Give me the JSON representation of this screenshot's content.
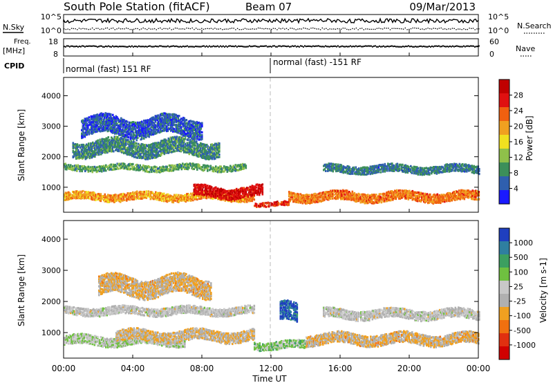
{
  "header": {
    "station": "South Pole Station (fitACF)",
    "beam": "Beam 07",
    "date": "09/Mar/2013"
  },
  "top_panels": {
    "nsky_label": "N.Sky",
    "nsky_ticks": [
      "10^5",
      "10^0"
    ],
    "nsearch_label": "N.Search",
    "freq_label_line1": "Freq.",
    "freq_label_line2": "[MHz]",
    "freq_ticks": [
      "18",
      "8"
    ],
    "nave_label": "Nave",
    "nave_ticks": [
      "60",
      "0"
    ],
    "cpid_label": "CPID",
    "cpid_segments": [
      "normal (fast) 151 RF",
      "normal (fast) -151 RF"
    ]
  },
  "x_axis": {
    "label": "Time UT",
    "ticks": [
      "00:00",
      "04:00",
      "08:00",
      "12:00",
      "16:00",
      "20:00",
      "00:00"
    ]
  },
  "power_panel": {
    "ylabel": "Slant Range [km]",
    "yticks": [
      "4000",
      "3000",
      "2000",
      "1000"
    ],
    "colorbar_label": "Power [dB]",
    "colorbar_ticks": [
      "28",
      "24",
      "20",
      "16",
      "12",
      "8",
      "4"
    ],
    "colors": [
      "#1a1aff",
      "#2f5fae",
      "#3c8f5a",
      "#8fc04a",
      "#f0e020",
      "#f0a020",
      "#f06010",
      "#e01010",
      "#c00000"
    ]
  },
  "velocity_panel": {
    "ylabel": "Slant Range [km]",
    "yticks": [
      "4000",
      "3000",
      "2000",
      "1000"
    ],
    "colorbar_label": "Velocity [m s-1]",
    "colorbar_ticks": [
      "1000",
      "500",
      "100",
      "25",
      "-25",
      "-100",
      "-500",
      "-1000"
    ],
    "colors": [
      "#1f3fbf",
      "#2f7fa0",
      "#3c9f60",
      "#6fc040",
      "#c8c8c8",
      "#b0b0b0",
      "#f0a020",
      "#f07010",
      "#e03010",
      "#d00000"
    ]
  },
  "chart_data": [
    {
      "type": "heatmap",
      "title": "South Pole Station (fitACF)",
      "xlabel": "Time UT",
      "ylabel": "Slant Range [km]",
      "xlim": [
        "00:00",
        "24:00"
      ],
      "ylim": [
        180,
        4600
      ],
      "colorbar": "Power [dB]",
      "clim": [
        0,
        32
      ],
      "echo_bands": [
        {
          "t_start": 0.0,
          "t_end": 11.0,
          "range_center": 700,
          "range_width": 250,
          "power": 20
        },
        {
          "t_start": 7.5,
          "t_end": 11.5,
          "range_center": 850,
          "range_width": 350,
          "power": 28
        },
        {
          "t_start": 0.0,
          "t_end": 10.5,
          "range_center": 1650,
          "range_width": 200,
          "power": 10
        },
        {
          "t_start": 0.5,
          "t_end": 9.0,
          "range_center": 2300,
          "range_width": 500,
          "power": 8
        },
        {
          "t_start": 1.0,
          "t_end": 8.0,
          "range_center": 3000,
          "range_width": 600,
          "power": 5
        },
        {
          "t_start": 11.0,
          "t_end": 13.0,
          "range_center": 450,
          "range_width": 150,
          "power": 26
        },
        {
          "t_start": 13.0,
          "t_end": 24.0,
          "range_center": 700,
          "range_width": 300,
          "power": 22
        },
        {
          "t_start": 15.0,
          "t_end": 24.0,
          "range_center": 1600,
          "range_width": 250,
          "power": 7
        }
      ]
    },
    {
      "type": "heatmap",
      "xlabel": "Time UT",
      "ylabel": "Slant Range [km]",
      "xlim": [
        "00:00",
        "24:00"
      ],
      "ylim": [
        180,
        4600
      ],
      "colorbar": "Velocity [m s-1]",
      "clim": [
        -1000,
        1000
      ],
      "echo_bands": [
        {
          "t_start": 0.0,
          "t_end": 7.0,
          "range_center": 750,
          "range_width": 300,
          "velocity": 150
        },
        {
          "t_start": 3.0,
          "t_end": 11.0,
          "range_center": 900,
          "range_width": 350,
          "velocity": -150
        },
        {
          "t_start": 0.0,
          "t_end": 11.0,
          "range_center": 1700,
          "range_width": 250,
          "velocity": 0
        },
        {
          "t_start": 2.0,
          "t_end": 8.5,
          "range_center": 2500,
          "range_width": 600,
          "velocity": -200
        },
        {
          "t_start": 11.0,
          "t_end": 14.0,
          "range_center": 600,
          "range_width": 250,
          "velocity": 250
        },
        {
          "t_start": 12.5,
          "t_end": 13.5,
          "range_center": 1600,
          "range_width": 600,
          "velocity": 800
        },
        {
          "t_start": 14.0,
          "t_end": 24.0,
          "range_center": 800,
          "range_width": 350,
          "velocity": -200
        },
        {
          "t_start": 15.0,
          "t_end": 24.0,
          "range_center": 1600,
          "range_width": 300,
          "velocity": 0
        }
      ]
    }
  ]
}
